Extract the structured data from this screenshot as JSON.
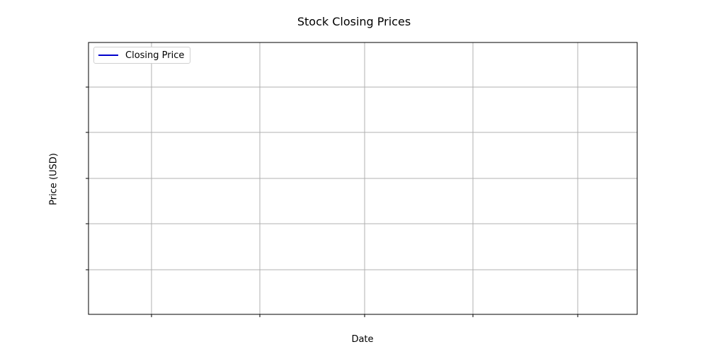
{
  "chart_data": {
    "type": "line",
    "title": "Stock Closing Prices",
    "xlabel": "Date",
    "ylabel": "Price (USD)",
    "x": [],
    "series": [
      {
        "name": "Closing Price",
        "values": [],
        "color": "#0000cc"
      }
    ],
    "grid": true,
    "legend": "top-left",
    "tick_labels_visible": false
  }
}
